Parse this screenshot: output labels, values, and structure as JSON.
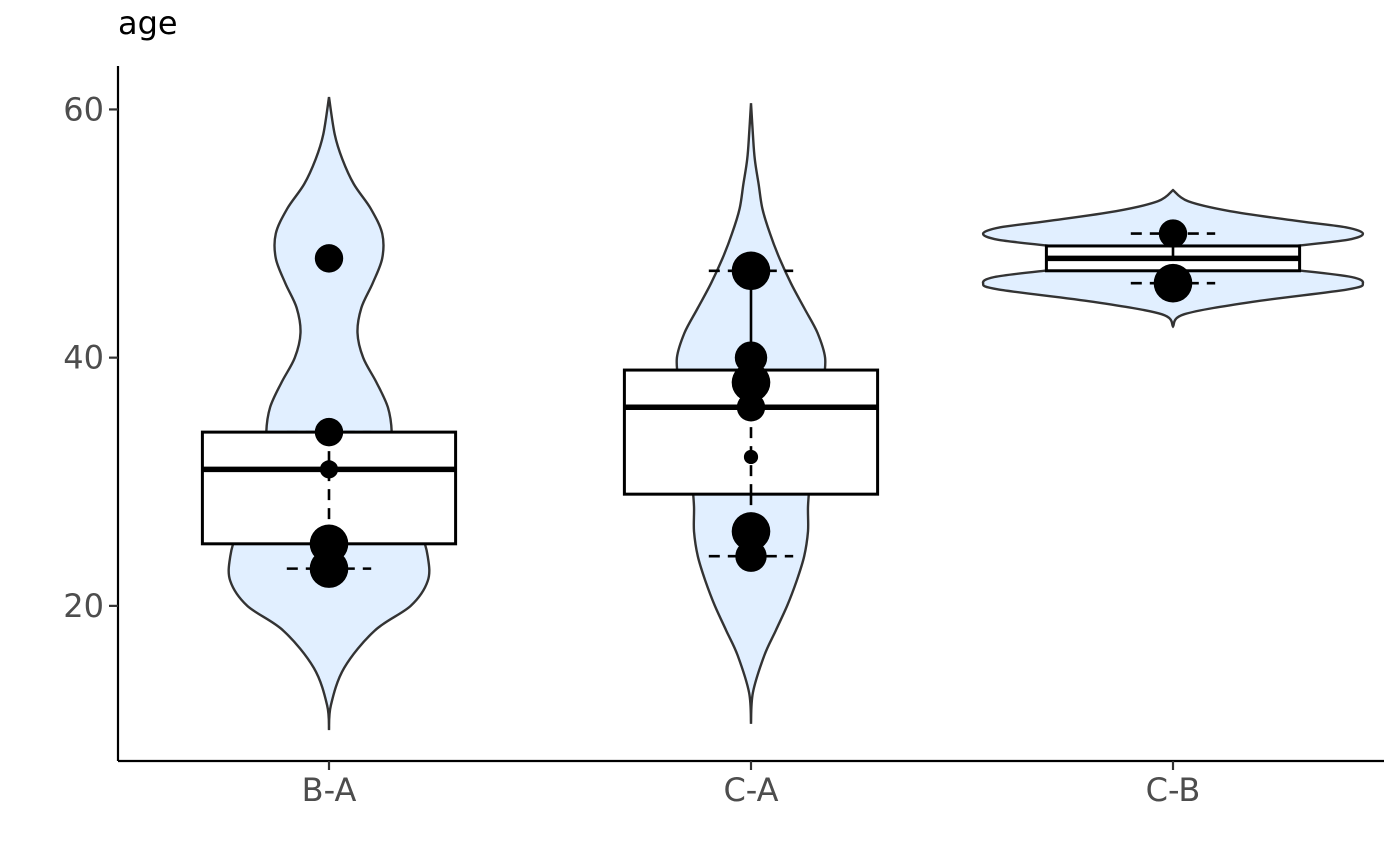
{
  "chart_data": {
    "type": "violin-box",
    "ylabel": "age",
    "xlabel": "",
    "ylim": [
      7.5,
      63.5
    ],
    "yticks": [
      20,
      40,
      60
    ],
    "violin_fill": "#e1efff",
    "categories": [
      {
        "name": "B-A",
        "violin": {
          "range": [
            10,
            61
          ],
          "profile": [
            [
              10,
              0.0
            ],
            [
              12,
              0.01
            ],
            [
              15,
              0.08
            ],
            [
              18,
              0.24
            ],
            [
              20,
              0.43
            ],
            [
              22,
              0.52
            ],
            [
              24,
              0.52
            ],
            [
              26,
              0.48
            ],
            [
              28,
              0.4
            ],
            [
              30,
              0.34
            ],
            [
              32,
              0.32
            ],
            [
              34,
              0.33
            ],
            [
              36,
              0.31
            ],
            [
              38,
              0.25
            ],
            [
              40,
              0.18
            ],
            [
              42,
              0.15
            ],
            [
              44,
              0.17
            ],
            [
              46,
              0.23
            ],
            [
              48,
              0.28
            ],
            [
              50,
              0.28
            ],
            [
              52,
              0.22
            ],
            [
              54,
              0.13
            ],
            [
              56,
              0.07
            ],
            [
              58,
              0.03
            ],
            [
              61,
              0.0
            ]
          ]
        },
        "box": {
          "q1": 25,
          "median": 31,
          "q3": 34,
          "whisker_low": 23,
          "whisker_high": 34
        },
        "points": [
          {
            "y": 48,
            "size": 2
          },
          {
            "y": 34,
            "size": 2
          },
          {
            "y": 31,
            "size": 1
          },
          {
            "y": 25,
            "size": 3
          },
          {
            "y": 23,
            "size": 3
          }
        ]
      },
      {
        "name": "C-A",
        "violin": {
          "range": [
            10.5,
            60.5
          ],
          "profile": [
            [
              10.5,
              0.0
            ],
            [
              13,
              0.01
            ],
            [
              16,
              0.07
            ],
            [
              18,
              0.13
            ],
            [
              20,
              0.19
            ],
            [
              22,
              0.24
            ],
            [
              24,
              0.28
            ],
            [
              26,
              0.3
            ],
            [
              28,
              0.3
            ],
            [
              30,
              0.31
            ],
            [
              32,
              0.32
            ],
            [
              34,
              0.33
            ],
            [
              36,
              0.35
            ],
            [
              38,
              0.38
            ],
            [
              40,
              0.39
            ],
            [
              42,
              0.35
            ],
            [
              44,
              0.28
            ],
            [
              46,
              0.21
            ],
            [
              48,
              0.15
            ],
            [
              50,
              0.1
            ],
            [
              52,
              0.06
            ],
            [
              54,
              0.04
            ],
            [
              56,
              0.02
            ],
            [
              58,
              0.01
            ],
            [
              60.5,
              0.0
            ]
          ]
        },
        "box": {
          "q1": 29,
          "median": 36,
          "q3": 39,
          "whisker_low": 24,
          "whisker_high": 47
        },
        "points": [
          {
            "y": 47,
            "size": 3
          },
          {
            "y": 40,
            "size": 2.4
          },
          {
            "y": 38,
            "size": 3
          },
          {
            "y": 36,
            "size": 2
          },
          {
            "y": 32,
            "size": 0.6
          },
          {
            "y": 26,
            "size": 3
          },
          {
            "y": 24,
            "size": 2.3
          }
        ]
      },
      {
        "name": "C-B",
        "violin": {
          "range": [
            42.5,
            53.5
          ],
          "profile": [
            [
              42.5,
              0.0
            ],
            [
              43.5,
              0.06
            ],
            [
              44.5,
              0.42
            ],
            [
              45.5,
              0.92
            ],
            [
              46,
              1.0
            ],
            [
              46.5,
              0.94
            ],
            [
              47,
              0.68
            ],
            [
              47.5,
              0.35
            ],
            [
              48,
              0.22
            ],
            [
              48.5,
              0.33
            ],
            [
              49,
              0.64
            ],
            [
              49.5,
              0.92
            ],
            [
              50,
              1.0
            ],
            [
              50.5,
              0.91
            ],
            [
              51,
              0.66
            ],
            [
              51.8,
              0.3
            ],
            [
              52.6,
              0.08
            ],
            [
              53.5,
              0.0
            ]
          ]
        },
        "box": {
          "q1": 47,
          "median": 48,
          "q3": 49,
          "whisker_low": 46,
          "whisker_high": 50
        },
        "points": [
          {
            "y": 50,
            "size": 2
          },
          {
            "y": 46,
            "size": 3
          }
        ]
      }
    ]
  }
}
